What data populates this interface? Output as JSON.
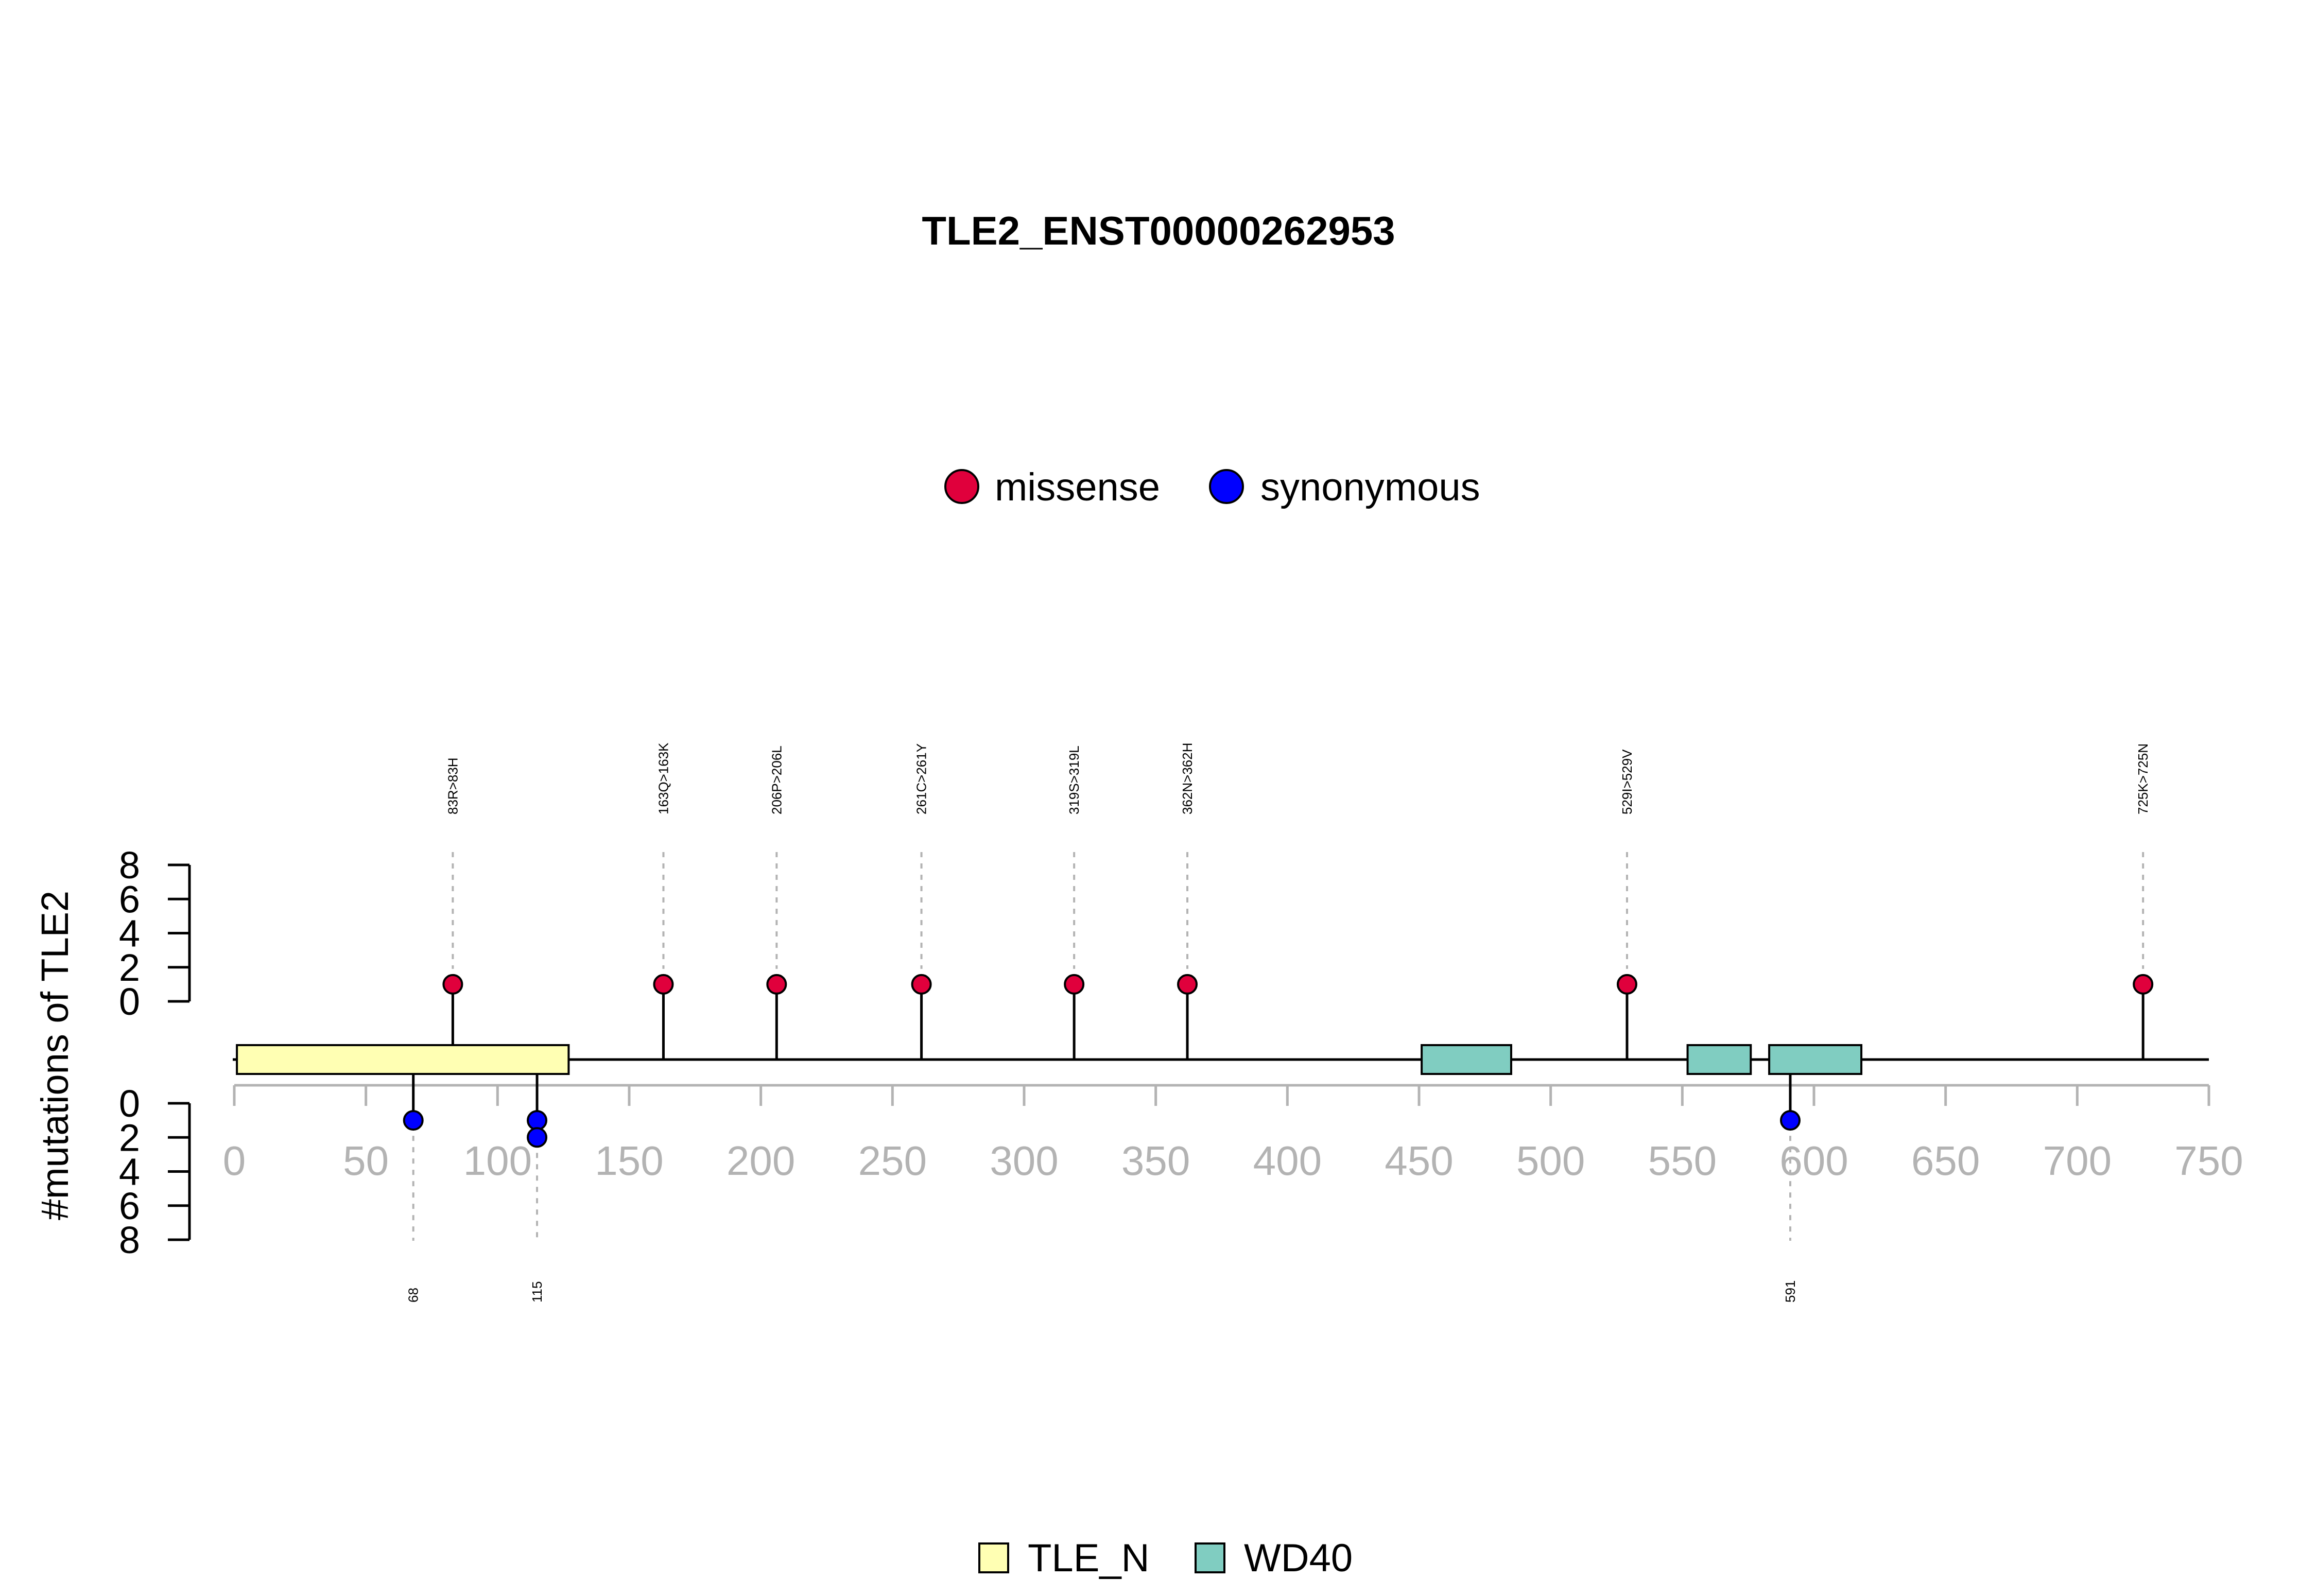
{
  "chart_data": {
    "type": "lollipop",
    "title": "TLE2_ENST00000262953",
    "ylabel": "#mutations of TLE2",
    "xlim": [
      0,
      750
    ],
    "x_ticks": [
      0,
      50,
      100,
      150,
      200,
      250,
      300,
      350,
      400,
      450,
      500,
      550,
      600,
      650,
      700,
      750
    ],
    "y_ticks": [
      0,
      2,
      4,
      6,
      8
    ],
    "ylim": [
      0,
      8
    ],
    "legend_mutation_types": [
      {
        "name": "missense",
        "color": "#e0003c"
      },
      {
        "name": "synonymous",
        "color": "#0000ff"
      }
    ],
    "legend_domains": [
      {
        "name": "TLE_N",
        "color": "#ffffb3"
      },
      {
        "name": "WD40",
        "color": "#80cdc1"
      }
    ],
    "domains": [
      {
        "name": "TLE_N",
        "start": 1,
        "end": 127
      },
      {
        "name": "WD40",
        "start": 451,
        "end": 485
      },
      {
        "name": "WD40",
        "start": 552,
        "end": 576
      },
      {
        "name": "WD40",
        "start": 583,
        "end": 618
      }
    ],
    "missense": [
      {
        "position": 83,
        "count": 1,
        "label": "83R>83H"
      },
      {
        "position": 163,
        "count": 1,
        "label": "163Q>163K"
      },
      {
        "position": 206,
        "count": 1,
        "label": "206P>206L"
      },
      {
        "position": 261,
        "count": 1,
        "label": "261C>261Y"
      },
      {
        "position": 319,
        "count": 1,
        "label": "319S>319L"
      },
      {
        "position": 362,
        "count": 1,
        "label": "362N>362H"
      },
      {
        "position": 529,
        "count": 1,
        "label": "529I>529V"
      },
      {
        "position": 725,
        "count": 1,
        "label": "725K>725N"
      }
    ],
    "synonymous": [
      {
        "position": 68,
        "count": 1,
        "label": "68"
      },
      {
        "position": 115,
        "count": 2,
        "label": "115"
      },
      {
        "position": 591,
        "count": 1,
        "label": "591"
      }
    ]
  }
}
